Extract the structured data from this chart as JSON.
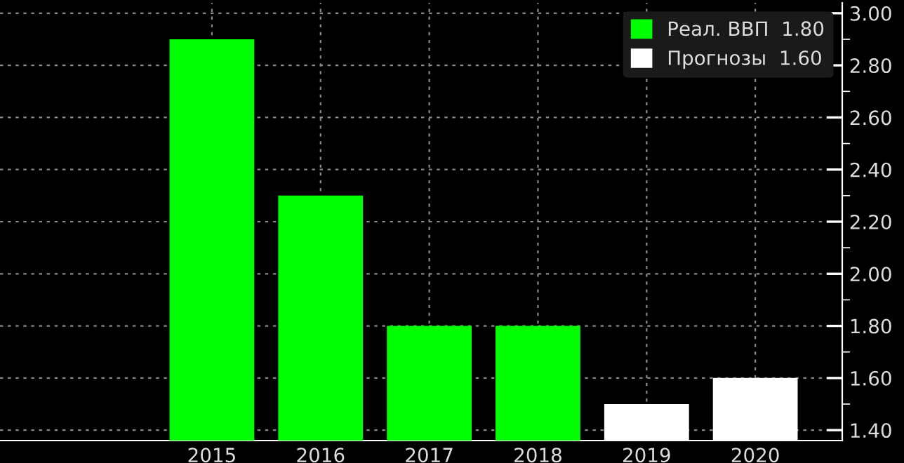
{
  "chart_data": {
    "type": "bar",
    "categories": [
      "2015",
      "2016",
      "2017",
      "2018",
      "2019",
      "2020"
    ],
    "series": [
      {
        "name": "Реал. ВВП  1.80",
        "color": "#00ff00",
        "values": [
          2.9,
          2.3,
          1.8,
          1.8,
          null,
          null
        ]
      },
      {
        "name": "Прогнозы  1.60",
        "color": "#ffffff",
        "values": [
          null,
          null,
          null,
          null,
          1.5,
          1.6
        ]
      }
    ],
    "ylim": [
      1.36,
      3.04
    ],
    "yticks": [
      {
        "value": 1.4,
        "label": "1.40"
      },
      {
        "value": 1.6,
        "label": "1.60"
      },
      {
        "value": 1.8,
        "label": "1.80"
      },
      {
        "value": 2.0,
        "label": "2.00"
      },
      {
        "value": 2.2,
        "label": "2.20"
      },
      {
        "value": 2.4,
        "label": "2.40"
      },
      {
        "value": 2.6,
        "label": "2.60"
      },
      {
        "value": 2.8,
        "label": "2.80"
      },
      {
        "value": 3.0,
        "label": "3.00"
      }
    ],
    "grid": true,
    "legend": "top right"
  }
}
